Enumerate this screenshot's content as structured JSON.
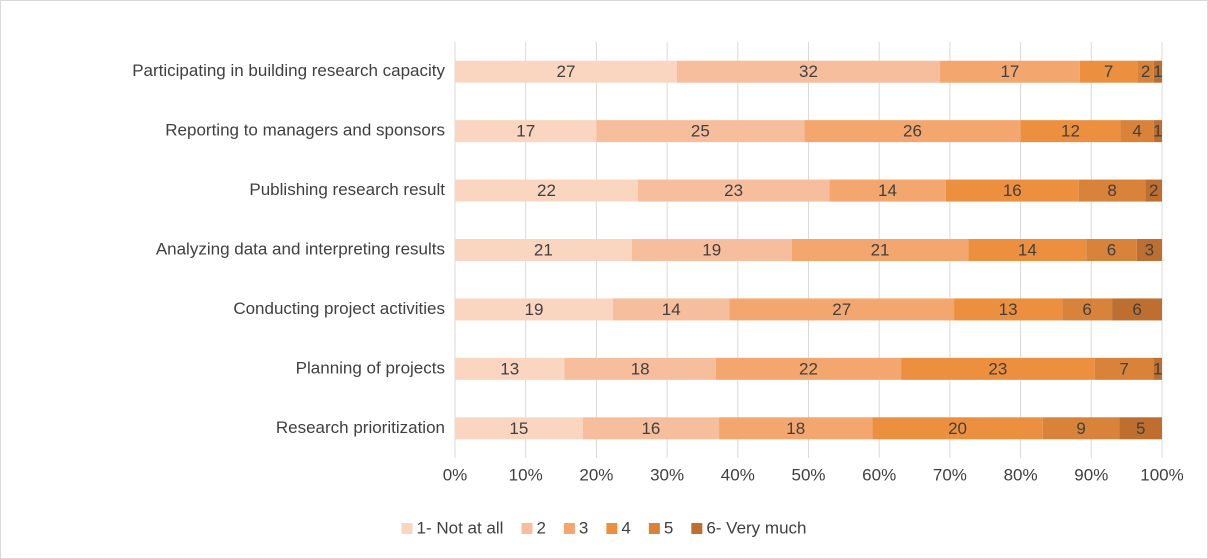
{
  "chart_data": {
    "type": "stacked-bar-100",
    "orientation": "horizontal",
    "categories": [
      "Participating in building research capacity",
      "Reporting to managers and sponsors",
      "Publishing research result",
      "Analyzing data and interpreting results",
      "Conducting project activities",
      "Planning of projects",
      "Research prioritization"
    ],
    "series": [
      {
        "name": "1- Not at all",
        "color": "#fad6c1",
        "values": [
          27,
          17,
          22,
          21,
          19,
          13,
          15
        ]
      },
      {
        "name": "2",
        "color": "#f7be9d",
        "values": [
          32,
          25,
          23,
          19,
          14,
          18,
          16
        ]
      },
      {
        "name": "3",
        "color": "#f4a66f",
        "values": [
          17,
          26,
          14,
          21,
          27,
          22,
          18
        ]
      },
      {
        "name": "4",
        "color": "#ec9040",
        "values": [
          7,
          12,
          16,
          14,
          13,
          23,
          20
        ]
      },
      {
        "name": "5",
        "color": "#d9823a",
        "values": [
          2,
          4,
          8,
          6,
          6,
          7,
          9
        ]
      },
      {
        "name": "6- Very much",
        "color": "#be6e2e",
        "values": [
          1,
          1,
          2,
          3,
          6,
          1,
          5
        ]
      }
    ],
    "xlim": [
      0,
      100
    ],
    "xticks": [
      {
        "value": 0,
        "label": "0%"
      },
      {
        "value": 10,
        "label": "10%"
      },
      {
        "value": 20,
        "label": "20%"
      },
      {
        "value": 30,
        "label": "30%"
      },
      {
        "value": 40,
        "label": "40%"
      },
      {
        "value": 50,
        "label": "50%"
      },
      {
        "value": 60,
        "label": "60%"
      },
      {
        "value": 70,
        "label": "70%"
      },
      {
        "value": 80,
        "label": "80%"
      },
      {
        "value": 90,
        "label": "90%"
      },
      {
        "value": 100,
        "label": "100%"
      }
    ],
    "grid": true,
    "legend": "bottom"
  }
}
